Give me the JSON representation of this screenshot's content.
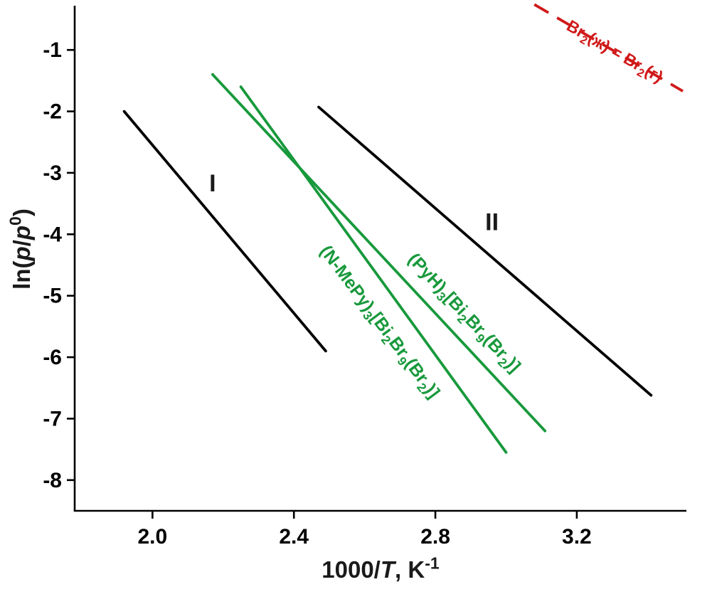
{
  "chart_data": {
    "type": "line",
    "title": "",
    "xlabel": "1000/T, K⁻¹",
    "ylabel": "ln(p/p⁰)",
    "xlabel_segments": [
      {
        "t": "1000/"
      },
      {
        "t": "T",
        "i": true
      },
      {
        "t": ", K"
      },
      {
        "t": "-1",
        "sup": true
      }
    ],
    "ylabel_segments": [
      {
        "t": "ln("
      },
      {
        "t": "p",
        "i": true
      },
      {
        "t": "/"
      },
      {
        "t": "p",
        "i": true
      },
      {
        "t": "0",
        "sup": true
      },
      {
        "t": ")"
      }
    ],
    "xlim": [
      1.78,
      3.51
    ],
    "ylim": [
      -8.5,
      -0.28
    ],
    "grid": false,
    "legend_position": "none",
    "axis_color": "#000000",
    "x_ticks": [
      {
        "value": 2.0,
        "label": "2.0"
      },
      {
        "value": 2.4,
        "label": "2.4"
      },
      {
        "value": 2.8,
        "label": "2.8"
      },
      {
        "value": 3.2,
        "label": "3.2"
      }
    ],
    "y_ticks": [
      {
        "value": -1,
        "label": "-1"
      },
      {
        "value": -2,
        "label": "-2"
      },
      {
        "value": -3,
        "label": "-3"
      },
      {
        "value": -4,
        "label": "-4"
      },
      {
        "value": -5,
        "label": "-5"
      },
      {
        "value": -6,
        "label": "-6"
      },
      {
        "value": -7,
        "label": "-7"
      },
      {
        "value": -8,
        "label": "-8"
      }
    ],
    "series": [
      {
        "name": "I",
        "color": "#000000",
        "line_style": "solid",
        "line_width": 3.8,
        "points": [
          [
            1.92,
            -2.0
          ],
          [
            2.49,
            -5.9
          ]
        ],
        "label": {
          "segments": [
            {
              "t": "I"
            }
          ],
          "x": 2.17,
          "y": -3.3,
          "rotate": 0,
          "font_size": 34,
          "color": "#1a1a1a"
        }
      },
      {
        "name": "II",
        "color": "#000000",
        "line_style": "solid",
        "line_width": 3.8,
        "points": [
          [
            2.47,
            -1.93
          ],
          [
            3.41,
            -6.62
          ]
        ],
        "label": {
          "segments": [
            {
              "t": "II"
            }
          ],
          "x": 2.96,
          "y": -3.93,
          "rotate": 0,
          "font_size": 34,
          "color": "#1a1a1a"
        }
      },
      {
        "name": "(PyH)₃[Bi₂Br₉(Br₂)]",
        "color": "#18993c",
        "line_style": "solid",
        "line_width": 3.8,
        "points": [
          [
            2.17,
            -1.4
          ],
          [
            3.11,
            -7.2
          ]
        ],
        "label": {
          "segments": [
            {
              "t": "(PyH)"
            },
            {
              "t": "3",
              "sub": true
            },
            {
              "t": "[Bi"
            },
            {
              "t": "2",
              "sub": true
            },
            {
              "t": "Br"
            },
            {
              "t": "9",
              "sub": true
            },
            {
              "t": "(Br"
            },
            {
              "t": "2",
              "sub": true
            },
            {
              "t": ")]"
            }
          ],
          "x": 2.87,
          "y": -5.34,
          "rotate": 47,
          "font_size": 25,
          "color": "#18993c"
        }
      },
      {
        "name": "(N-MePy)₃[Bi₂Br₉(Br₂)]",
        "color": "#18993c",
        "line_style": "solid",
        "line_width": 3.8,
        "points": [
          [
            2.25,
            -1.6
          ],
          [
            3.0,
            -7.55
          ]
        ],
        "label": {
          "segments": [
            {
              "t": "(N-MePy)"
            },
            {
              "t": "3",
              "sub": true
            },
            {
              "t": "[Bi"
            },
            {
              "t": "2",
              "sub": true
            },
            {
              "t": "Br"
            },
            {
              "t": "9",
              "sub": true
            },
            {
              "t": "(Br"
            },
            {
              "t": "2",
              "sub": true
            },
            {
              "t": ")]"
            }
          ],
          "x": 2.63,
          "y": -5.48,
          "rotate": 53,
          "font_size": 25,
          "color": "#18993c"
        }
      },
      {
        "name": "Br₂(ж) = Br₂(г)",
        "color": "#d01919",
        "line_style": "dashed",
        "line_width": 3.8,
        "points": [
          [
            3.08,
            -0.26
          ],
          [
            3.5,
            -1.67
          ]
        ],
        "label": {
          "segments": [
            {
              "t": "Br"
            },
            {
              "t": "2",
              "sub": true
            },
            {
              "t": "(ж) = Br"
            },
            {
              "t": "2",
              "sub": true
            },
            {
              "t": "(г)"
            }
          ],
          "x": 3.3,
          "y": -1.1,
          "rotate": 30,
          "font_size": 23,
          "color": "#d01919"
        }
      }
    ]
  }
}
